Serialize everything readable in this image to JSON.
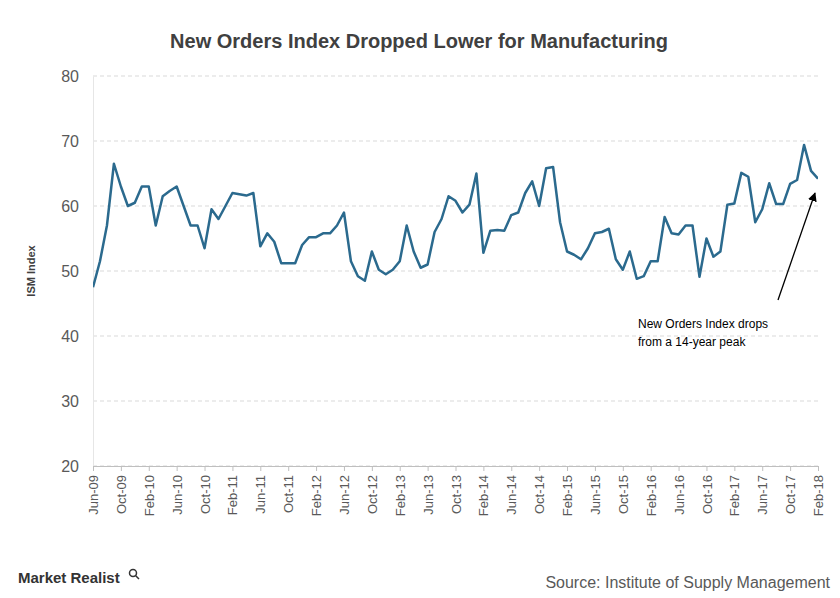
{
  "chart_data": {
    "type": "line",
    "title": "New Orders Index Dropped Lower for Manufacturing",
    "y_label": "ISM Index",
    "annotation": [
      "New Orders Index drops",
      "from a 14-year peak"
    ],
    "source": "Source: Institute of Supply Management",
    "brand": "Market Realist",
    "categories": [
      "Jun-09",
      null,
      null,
      null,
      "Oct-09",
      null,
      null,
      null,
      "Feb-10",
      null,
      null,
      null,
      "Jun-10",
      null,
      null,
      null,
      "Oct-10",
      null,
      null,
      null,
      "Feb-11",
      null,
      null,
      null,
      "Jun-11",
      null,
      null,
      null,
      "Oct-11",
      null,
      null,
      null,
      "Feb-12",
      null,
      null,
      null,
      "Jun-12",
      null,
      null,
      null,
      "Oct-12",
      null,
      null,
      null,
      "Feb-13",
      null,
      null,
      null,
      "Jun-13",
      null,
      null,
      null,
      "Oct-13",
      null,
      null,
      null,
      "Feb-14",
      null,
      null,
      null,
      "Jun-14",
      null,
      null,
      null,
      "Oct-14",
      null,
      null,
      null,
      "Feb-15",
      null,
      null,
      null,
      "Jun-15",
      null,
      null,
      null,
      "Oct-15",
      null,
      null,
      null,
      "Feb-16",
      null,
      null,
      null,
      "Jun-16",
      null,
      null,
      null,
      "Oct-16",
      null,
      null,
      null,
      "Feb-17",
      null,
      null,
      null,
      "Jun-17",
      null,
      null,
      null,
      "Oct-17",
      null,
      null,
      null,
      "Feb-18"
    ],
    "values": [
      47.5,
      51.5,
      57,
      66.5,
      63,
      60,
      60.5,
      63,
      63,
      57,
      61.5,
      62.3,
      63,
      60,
      57,
      57,
      53.5,
      59.5,
      58,
      60,
      62,
      61.8,
      61.6,
      62,
      53.8,
      55.8,
      54.5,
      51.2,
      51.2,
      51.2,
      54,
      55.2,
      55.2,
      55.8,
      55.8,
      57,
      59,
      51.5,
      49.2,
      48.5,
      53,
      50.2,
      49.5,
      50.2,
      51.5,
      57,
      53,
      50.5,
      51,
      56,
      58,
      61.5,
      60.8,
      59,
      60.2,
      65,
      52.8,
      56.2,
      56.3,
      56.2,
      58.6,
      59,
      62,
      63.8,
      60,
      65.8,
      66,
      57.5,
      53,
      52.5,
      51.8,
      53.5,
      55.8,
      56,
      56.5,
      51.8,
      50.2,
      53,
      48.8,
      49.2,
      51.5,
      51.5,
      58.3,
      55.8,
      55.6,
      57,
      57,
      49.1,
      55,
      52.2,
      53,
      60.2,
      60.4,
      65.1,
      64.5,
      57.5,
      59.5,
      63.5,
      60.3,
      60.3,
      63.4,
      64,
      69.4,
      65.4,
      64.2
    ],
    "color": "#2b6a8e",
    "ylim": [
      20,
      80
    ],
    "yticks": [
      20,
      30,
      40,
      50,
      60,
      70,
      80
    ],
    "grid": true
  }
}
